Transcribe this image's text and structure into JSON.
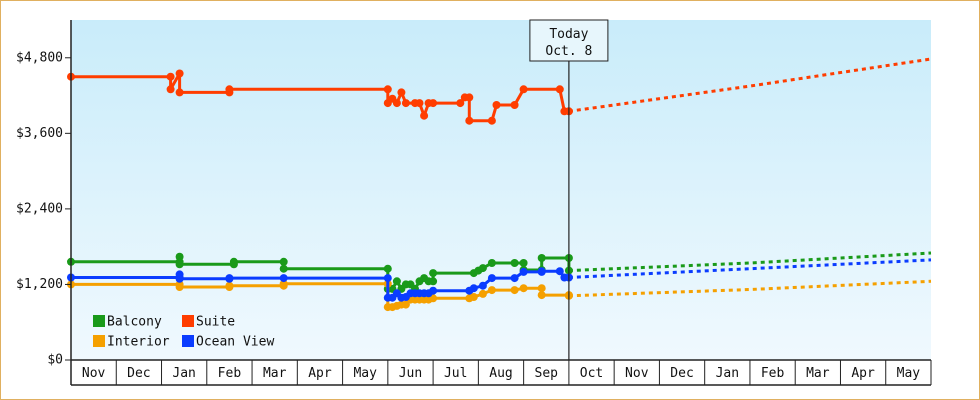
{
  "chart_data": {
    "type": "line",
    "title": "",
    "xlabel": "",
    "ylabel": "",
    "ylim": [
      0,
      5400
    ],
    "y_ticks": [
      {
        "value": 0,
        "label": "$0"
      },
      {
        "value": 1200,
        "label": "$1,200"
      },
      {
        "value": 2400,
        "label": "$2,400"
      },
      {
        "value": 3600,
        "label": "$3,600"
      },
      {
        "value": 4800,
        "label": "$4,800"
      }
    ],
    "x_categories": [
      "Nov",
      "Dec",
      "Jan",
      "Feb",
      "Mar",
      "Apr",
      "May",
      "Jun",
      "Jul",
      "Aug",
      "Sep",
      "Oct",
      "Nov",
      "Dec",
      "Jan",
      "Feb",
      "Mar",
      "Apr",
      "May"
    ],
    "x_range": [
      0,
      19
    ],
    "today": {
      "x": 11.0,
      "line1": "Today",
      "line2": "Oct. 8"
    },
    "grid": false,
    "legend_position": "bottom-left",
    "series": [
      {
        "name": "Balcony",
        "color": "#1a9a1a",
        "actual": [
          [
            0,
            1560
          ],
          [
            2.4,
            1560
          ],
          [
            2.4,
            1640
          ],
          [
            2.4,
            1520
          ],
          [
            3.6,
            1520
          ],
          [
            3.6,
            1560
          ],
          [
            4.7,
            1560
          ],
          [
            4.7,
            1450
          ],
          [
            7.0,
            1450
          ],
          [
            7.0,
            1130
          ],
          [
            7.1,
            1130
          ],
          [
            7.2,
            1250
          ],
          [
            7.3,
            1130
          ],
          [
            7.4,
            1200
          ],
          [
            7.5,
            1200
          ],
          [
            7.6,
            1130
          ],
          [
            7.7,
            1250
          ],
          [
            7.8,
            1300
          ],
          [
            7.9,
            1250
          ],
          [
            8.0,
            1250
          ],
          [
            8.0,
            1380
          ],
          [
            8.9,
            1380
          ],
          [
            9.0,
            1420
          ],
          [
            9.1,
            1460
          ],
          [
            9.3,
            1540
          ],
          [
            9.8,
            1540
          ],
          [
            10.0,
            1540
          ],
          [
            10.0,
            1430
          ],
          [
            10.4,
            1430
          ],
          [
            10.4,
            1620
          ],
          [
            11.0,
            1620
          ],
          [
            11.0,
            1420
          ]
        ],
        "forecast": [
          [
            11.0,
            1420
          ],
          [
            15.0,
            1540
          ],
          [
            19.0,
            1700
          ]
        ]
      },
      {
        "name": "Suite",
        "color": "#ff3d00",
        "actual": [
          [
            0,
            4500
          ],
          [
            2.2,
            4500
          ],
          [
            2.2,
            4300
          ],
          [
            2.4,
            4550
          ],
          [
            2.4,
            4250
          ],
          [
            3.5,
            4250
          ],
          [
            3.5,
            4300
          ],
          [
            7.0,
            4300
          ],
          [
            7.0,
            4080
          ],
          [
            7.1,
            4150
          ],
          [
            7.2,
            4080
          ],
          [
            7.3,
            4250
          ],
          [
            7.4,
            4080
          ],
          [
            7.6,
            4080
          ],
          [
            7.7,
            4080
          ],
          [
            7.8,
            3880
          ],
          [
            7.9,
            4080
          ],
          [
            8.0,
            4080
          ],
          [
            8.6,
            4080
          ],
          [
            8.7,
            4170
          ],
          [
            8.8,
            4170
          ],
          [
            8.8,
            3800
          ],
          [
            9.3,
            3800
          ],
          [
            9.4,
            4050
          ],
          [
            9.8,
            4050
          ],
          [
            10.0,
            4300
          ],
          [
            10.8,
            4300
          ],
          [
            10.9,
            3950
          ],
          [
            11.0,
            3950
          ]
        ],
        "forecast": [
          [
            11.0,
            3950
          ],
          [
            15.0,
            4350
          ],
          [
            19.0,
            4780
          ]
        ]
      },
      {
        "name": "Interior",
        "color": "#f5a000",
        "actual": [
          [
            0,
            1200
          ],
          [
            2.4,
            1200
          ],
          [
            2.4,
            1160
          ],
          [
            3.5,
            1160
          ],
          [
            3.5,
            1180
          ],
          [
            4.7,
            1180
          ],
          [
            4.7,
            1210
          ],
          [
            7.0,
            1210
          ],
          [
            7.0,
            840
          ],
          [
            7.1,
            840
          ],
          [
            7.2,
            860
          ],
          [
            7.3,
            880
          ],
          [
            7.4,
            880
          ],
          [
            7.5,
            960
          ],
          [
            7.6,
            960
          ],
          [
            7.7,
            960
          ],
          [
            7.8,
            960
          ],
          [
            7.9,
            960
          ],
          [
            8.0,
            980
          ],
          [
            8.8,
            980
          ],
          [
            8.9,
            1000
          ],
          [
            9.1,
            1050
          ],
          [
            9.3,
            1110
          ],
          [
            9.8,
            1110
          ],
          [
            10.0,
            1140
          ],
          [
            10.4,
            1140
          ],
          [
            10.4,
            1030
          ],
          [
            11.0,
            1030
          ],
          [
            11.0,
            1020
          ]
        ],
        "forecast": [
          [
            11.0,
            1020
          ],
          [
            15.0,
            1120
          ],
          [
            19.0,
            1250
          ]
        ]
      },
      {
        "name": "Ocean View",
        "color": "#0a3cff",
        "actual": [
          [
            0,
            1310
          ],
          [
            2.4,
            1310
          ],
          [
            2.4,
            1360
          ],
          [
            2.4,
            1290
          ],
          [
            3.5,
            1290
          ],
          [
            3.5,
            1300
          ],
          [
            4.7,
            1300
          ],
          [
            4.7,
            1300
          ],
          [
            7.0,
            1300
          ],
          [
            7.0,
            990
          ],
          [
            7.1,
            990
          ],
          [
            7.2,
            1060
          ],
          [
            7.3,
            990
          ],
          [
            7.4,
            1000
          ],
          [
            7.5,
            1060
          ],
          [
            7.6,
            1060
          ],
          [
            7.7,
            1060
          ],
          [
            7.8,
            1060
          ],
          [
            7.9,
            1060
          ],
          [
            8.0,
            1100
          ],
          [
            8.8,
            1100
          ],
          [
            8.9,
            1140
          ],
          [
            9.1,
            1180
          ],
          [
            9.3,
            1300
          ],
          [
            9.8,
            1300
          ],
          [
            10.0,
            1400
          ],
          [
            10.4,
            1400
          ],
          [
            10.4,
            1410
          ],
          [
            10.8,
            1410
          ],
          [
            10.9,
            1310
          ],
          [
            11.0,
            1310
          ]
        ],
        "forecast": [
          [
            11.0,
            1310
          ],
          [
            15.0,
            1450
          ],
          [
            19.0,
            1590
          ]
        ]
      }
    ]
  },
  "colors": {
    "plot_gradient_top": "#c9ecfa",
    "plot_gradient_bottom": "#f0f9fe",
    "axis": "#222222",
    "frame_border": "#e0b060"
  }
}
